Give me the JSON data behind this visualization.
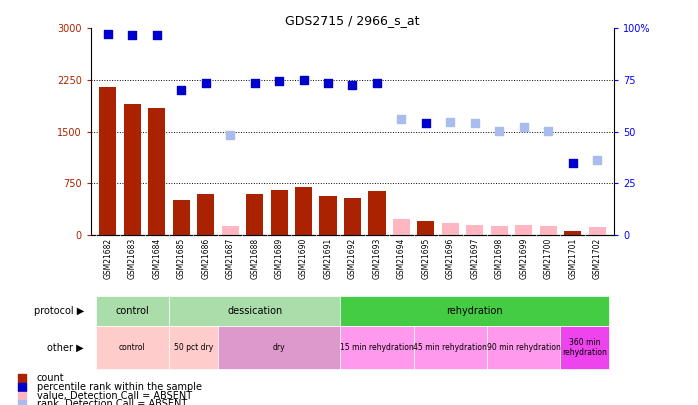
{
  "title": "GDS2715 / 2966_s_at",
  "samples": [
    "GSM21682",
    "GSM21683",
    "GSM21684",
    "GSM21685",
    "GSM21686",
    "GSM21687",
    "GSM21688",
    "GSM21689",
    "GSM21690",
    "GSM21691",
    "GSM21692",
    "GSM21693",
    "GSM21694",
    "GSM21695",
    "GSM21696",
    "GSM21697",
    "GSM21698",
    "GSM21699",
    "GSM21700",
    "GSM21701",
    "GSM21702"
  ],
  "count_values": [
    2150,
    1900,
    1850,
    500,
    600,
    0,
    600,
    650,
    700,
    560,
    530,
    640,
    0,
    200,
    0,
    0,
    0,
    0,
    0,
    50,
    0
  ],
  "count_absent": [
    0,
    0,
    0,
    0,
    0,
    130,
    0,
    0,
    0,
    0,
    0,
    0,
    230,
    0,
    170,
    150,
    130,
    140,
    130,
    0,
    110
  ],
  "rank_values": [
    2920,
    2900,
    2900,
    2100,
    2200,
    0,
    2200,
    2230,
    2250,
    2200,
    2170,
    2200,
    0,
    1620,
    1600,
    1570,
    1490,
    1520,
    0,
    1040,
    0
  ],
  "rank_absent": [
    0,
    0,
    0,
    0,
    0,
    1450,
    0,
    0,
    0,
    0,
    0,
    0,
    1680,
    0,
    1640,
    1630,
    1510,
    1560,
    1510,
    0,
    1090
  ],
  "detection_present": [
    true,
    true,
    true,
    true,
    true,
    false,
    true,
    true,
    true,
    true,
    true,
    true,
    false,
    true,
    false,
    false,
    false,
    false,
    false,
    true,
    false
  ],
  "ylim_left": [
    0,
    3000
  ],
  "ylim_right": [
    0,
    100
  ],
  "yticks_left": [
    0,
    750,
    1500,
    2250,
    3000
  ],
  "yticks_right": [
    0,
    25,
    50,
    75,
    100
  ],
  "protocol_groups": [
    {
      "label": "control",
      "start": 0,
      "end": 3,
      "color": "#AADDAA"
    },
    {
      "label": "dessication",
      "start": 3,
      "end": 10,
      "color": "#AADDAA"
    },
    {
      "label": "rehydration",
      "start": 10,
      "end": 21,
      "color": "#44CC44"
    }
  ],
  "other_groups": [
    {
      "label": "control",
      "start": 0,
      "end": 3,
      "color": "#FFCCCC"
    },
    {
      "label": "50 pct dry",
      "start": 3,
      "end": 5,
      "color": "#FFCCCC"
    },
    {
      "label": "dry",
      "start": 5,
      "end": 10,
      "color": "#DD99CC"
    },
    {
      "label": "15 min rehydration",
      "start": 10,
      "end": 13,
      "color": "#FF99EE"
    },
    {
      "label": "45 min rehydration",
      "start": 13,
      "end": 16,
      "color": "#FF99EE"
    },
    {
      "label": "90 min rehydration",
      "start": 16,
      "end": 19,
      "color": "#FF99EE"
    },
    {
      "label": "360 min\nrehydration",
      "start": 19,
      "end": 21,
      "color": "#EE44EE"
    }
  ],
  "bar_color_present": "#AA2200",
  "bar_color_absent": "#FFB6C1",
  "dot_color_present": "#0000CC",
  "dot_color_absent": "#AABBEE",
  "xticklabel_bg": "#CCCCCC",
  "legend_items": [
    {
      "color": "#AA2200",
      "label": "count"
    },
    {
      "color": "#0000CC",
      "label": "percentile rank within the sample"
    },
    {
      "color": "#FFB6C1",
      "label": "value, Detection Call = ABSENT"
    },
    {
      "color": "#AABBEE",
      "label": "rank, Detection Call = ABSENT"
    }
  ]
}
